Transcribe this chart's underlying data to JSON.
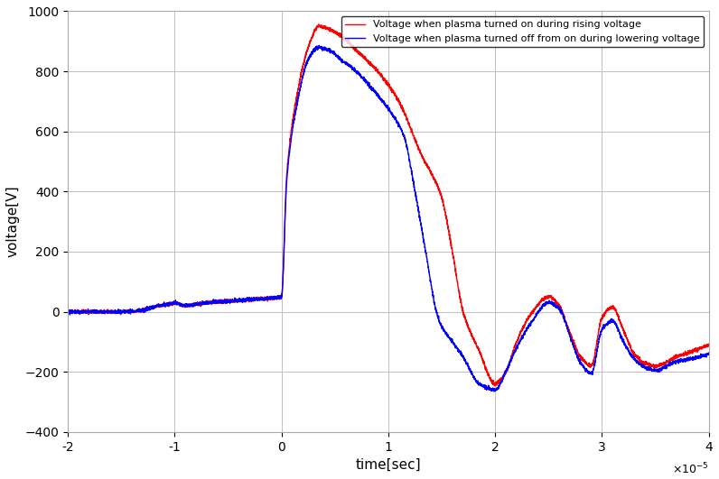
{
  "title": "",
  "xlabel": "time[sec]",
  "ylabel": "voltage[V]",
  "xlim": [
    -2e-05,
    4e-05
  ],
  "ylim": [
    -400,
    1000
  ],
  "yticks": [
    -400,
    -200,
    0,
    200,
    400,
    600,
    800,
    1000
  ],
  "xticks": [
    -2e-05,
    -1e-05,
    0,
    1e-05,
    2e-05,
    3e-05,
    4e-05
  ],
  "legend_labels": [
    "Voltage when plasma turned on during rising voltage",
    "Voltage when plasma turned off from on during lowering voltage"
  ],
  "red_color": "#ff0000",
  "blue_color": "#0000ff",
  "background_color": "#ffffff",
  "grid_color": "#c0c0c0",
  "scale_factor": 1e-05
}
